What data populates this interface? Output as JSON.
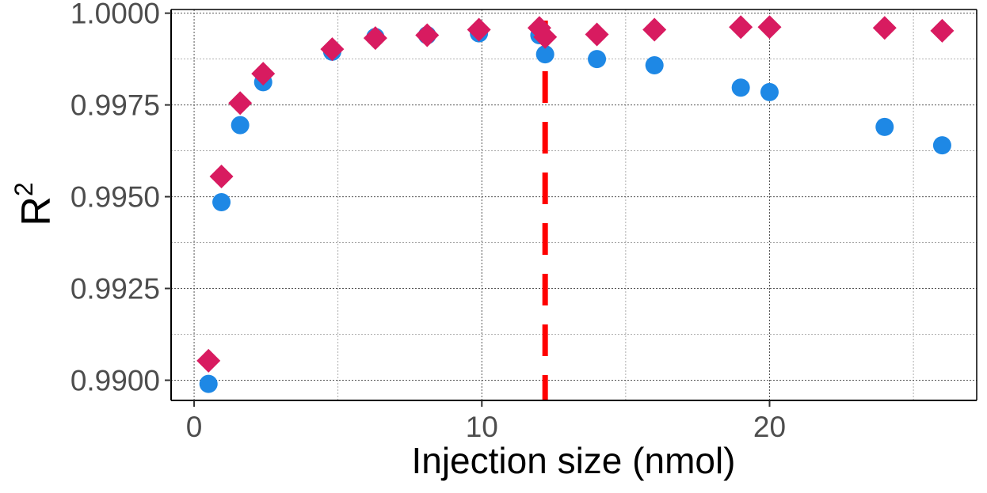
{
  "chart_data": {
    "type": "scatter",
    "title": "",
    "xlabel": "Injection size (nmol)",
    "ylabel_base": "R",
    "ylabel_superscript": "2",
    "xlim": [
      -0.8,
      27.2
    ],
    "ylim": [
      0.98945,
      1.0001
    ],
    "x_ticks": [
      0,
      10,
      20
    ],
    "x_tick_labels": [
      "0",
      "10",
      "20"
    ],
    "x_minor_ticks": [
      5,
      15,
      25
    ],
    "y_ticks": [
      0.99,
      0.9925,
      0.995,
      0.9975,
      1.0
    ],
    "y_tick_labels": [
      "0.9900",
      "0.9925",
      "0.9950",
      "0.9975",
      "1.0000"
    ],
    "y_minor_ticks": [
      0.99125,
      0.99375,
      0.99625,
      0.99875
    ],
    "grid": true,
    "legend": "none",
    "series": [
      {
        "name": "circle-series",
        "marker": "circle",
        "color": "#1e88e5",
        "x": [
          0.5,
          0.95,
          1.6,
          2.4,
          4.8,
          6.3,
          8.1,
          9.9,
          12.0,
          12.2,
          14.0,
          16.0,
          19.0,
          20.0,
          24.0,
          26.0
        ],
        "y": [
          0.9899,
          0.99485,
          0.99695,
          0.99812,
          0.99895,
          0.99935,
          0.9994,
          0.99945,
          0.9994,
          0.99888,
          0.99875,
          0.99858,
          0.99797,
          0.99785,
          0.9969,
          0.9964
        ]
      },
      {
        "name": "diamond-series",
        "marker": "diamond",
        "color": "#d81b60",
        "x": [
          0.5,
          0.95,
          1.6,
          2.4,
          4.8,
          6.3,
          8.1,
          9.9,
          12.0,
          12.2,
          14.0,
          16.0,
          19.0,
          20.0,
          24.0,
          26.0
        ],
        "y": [
          0.99053,
          0.99555,
          0.99755,
          0.99835,
          0.99902,
          0.99932,
          0.9994,
          0.99955,
          0.9996,
          0.99935,
          0.99942,
          0.99955,
          0.99962,
          0.99962,
          0.9996,
          0.99952
        ]
      }
    ],
    "reference_lines": [
      {
        "name": "vertical-dashed-line",
        "orientation": "vertical",
        "x": 12.2,
        "color": "#ff0000"
      }
    ]
  }
}
